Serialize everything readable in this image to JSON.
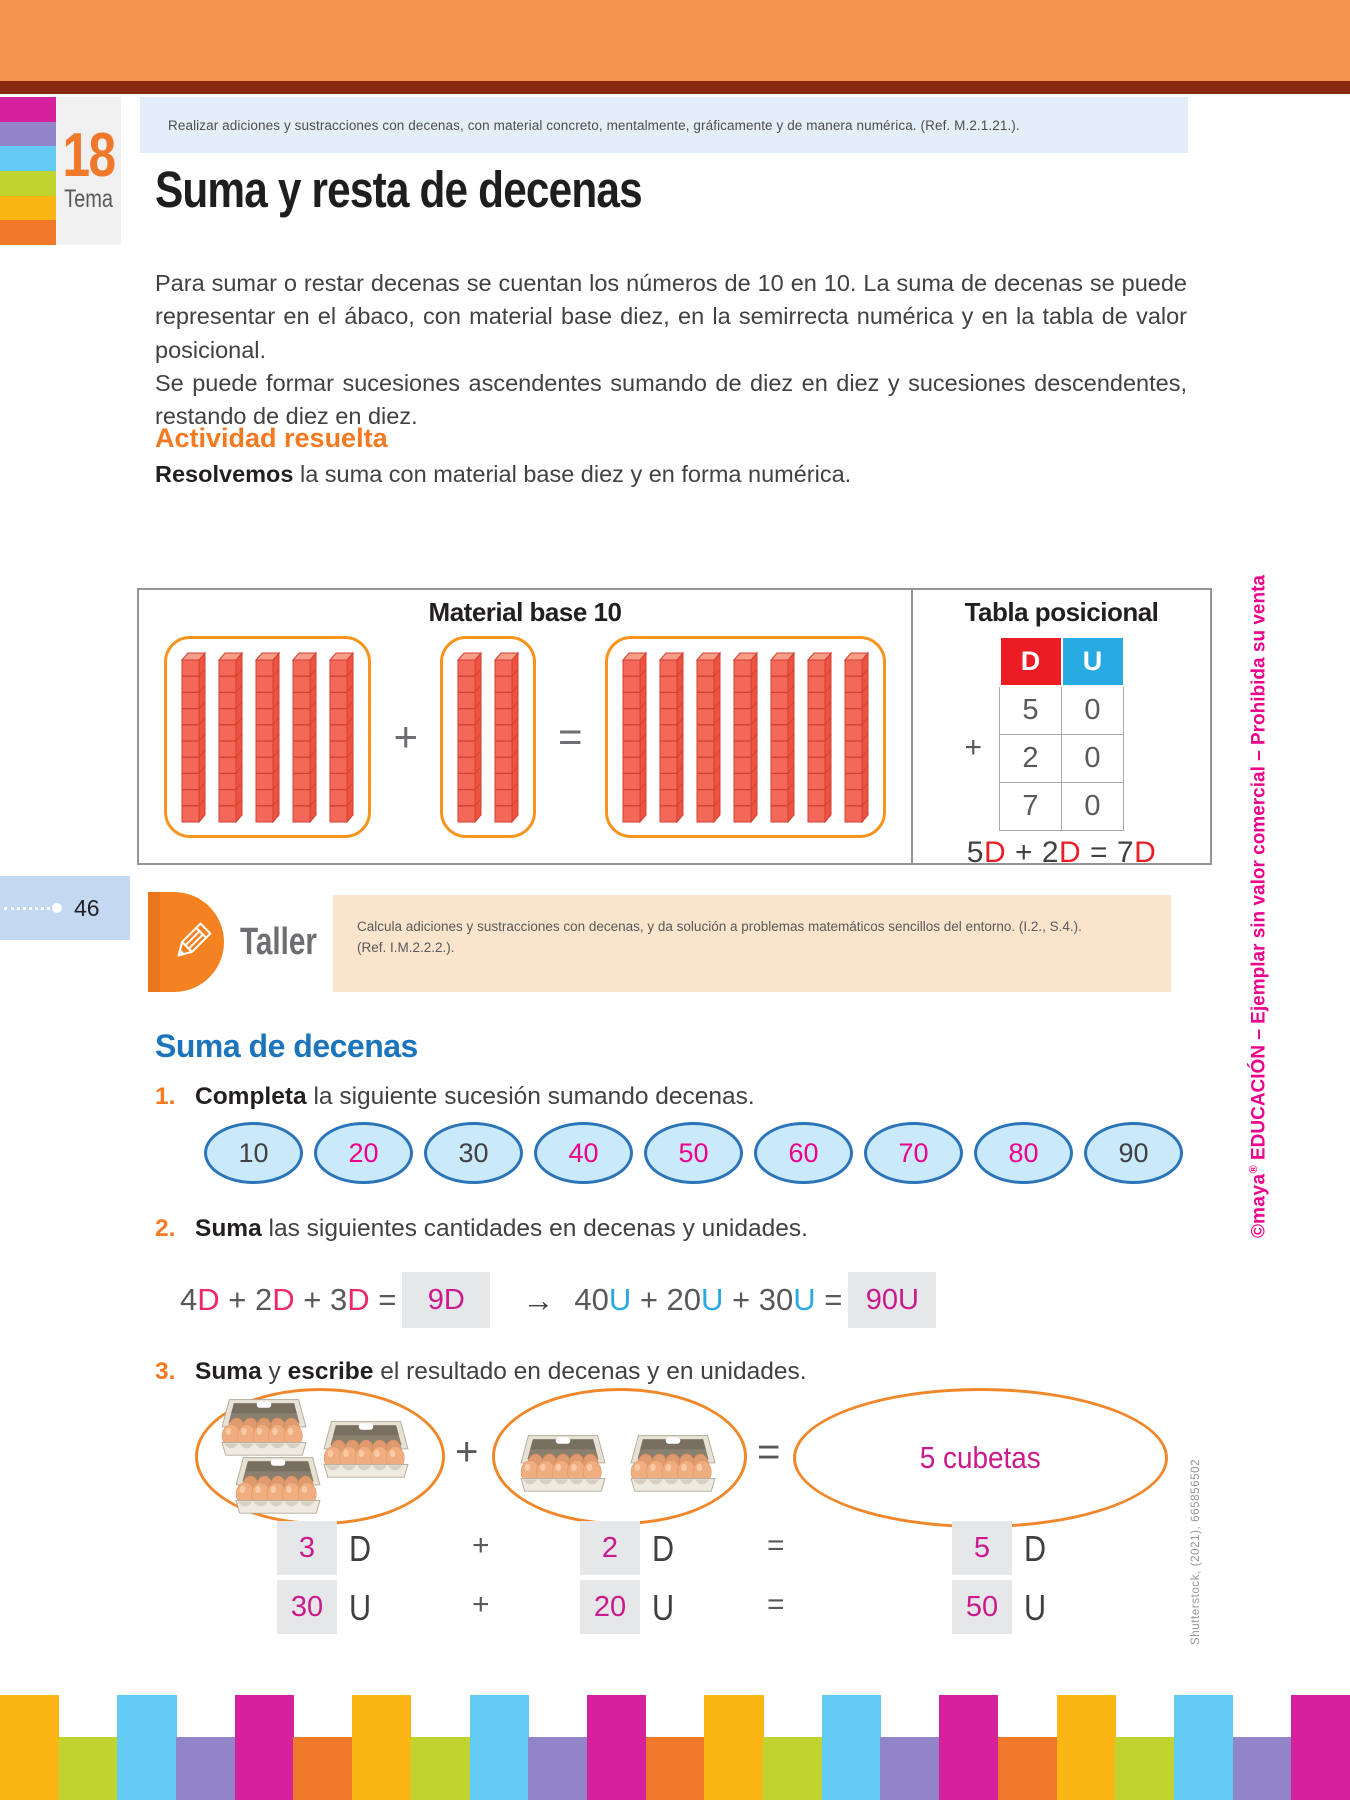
{
  "badge": {
    "number": "18",
    "label": "Tema",
    "stripes": [
      "#D6219C",
      "#9184C8",
      "#63CBF1",
      "#C0D32F",
      "#FBB614",
      "#F0782A"
    ]
  },
  "header": {
    "reference": "Realizar adiciones y sustracciones con decenas, con material concreto, mentalmente, gráficamente y de manera numérica. (Ref. M.2.1.21.)."
  },
  "page": {
    "number": "46",
    "title": "Suma y resta de decenas",
    "para1": "Para sumar o restar decenas se cuentan los números de 10 en 10. La suma de decenas se puede representar en el ábaco, con material base diez, en la semirrecta numérica y en la tabla de valor posicional.",
    "para2": "Se puede formar sucesiones ascendentes sumando de diez en diez y sucesiones descendentes, restando de diez en diez.",
    "activity_heading": "Actividad resuelta",
    "lead_bold": "Resolvemos",
    "lead_rest": " la suma con material base diez y en forma numérica."
  },
  "material_box": {
    "left_title": "Material base 10",
    "right_title": "Tabla posicional",
    "rod_groups": [
      5,
      2,
      7
    ],
    "plus": "+",
    "equals": "=",
    "table": {
      "headers": [
        {
          "label": "D",
          "color": "#EC1C24"
        },
        {
          "label": "U",
          "color": "#27AAE1"
        }
      ],
      "rows": [
        [
          "5",
          "0"
        ],
        [
          "2",
          "0"
        ],
        [
          "7",
          "0"
        ]
      ],
      "plus": "+"
    },
    "equation": [
      {
        "t": "5",
        "c": "#414042"
      },
      {
        "t": "D",
        "c": "#EC1C24"
      },
      {
        "t": " + ",
        "c": "#414042"
      },
      {
        "t": "2",
        "c": "#414042"
      },
      {
        "t": "D",
        "c": "#EC1C24"
      },
      {
        "t": " = ",
        "c": "#414042"
      },
      {
        "t": "7",
        "c": "#414042"
      },
      {
        "t": "D",
        "c": "#EC1C24"
      }
    ]
  },
  "taller": {
    "label": "Taller",
    "line1": "Calcula adiciones y sustracciones con decenas, y da solución a problemas matemáticos sencillos del entorno. (I.2., S.4.).",
    "line2": "(Ref. I.M.2.2.2.)."
  },
  "suma_section": {
    "heading": "Suma de decenas"
  },
  "ex1": {
    "num": "1.",
    "parts": [
      {
        "t": "Completa",
        "c": "#231F20",
        "b": true
      },
      {
        "t": " la siguiente sucesión sumando decenas.",
        "c": "#414042"
      }
    ],
    "sequence": [
      {
        "value": "10",
        "answer": false
      },
      {
        "value": "20",
        "answer": true
      },
      {
        "value": "30",
        "answer": false
      },
      {
        "value": "40",
        "answer": true
      },
      {
        "value": "50",
        "answer": true
      },
      {
        "value": "60",
        "answer": true
      },
      {
        "value": "70",
        "answer": true
      },
      {
        "value": "80",
        "answer": true
      },
      {
        "value": "90",
        "answer": false
      }
    ]
  },
  "ex2": {
    "num": "2.",
    "parts": [
      {
        "t": "Suma",
        "c": "#231F20",
        "b": true
      },
      {
        "t": " las siguientes cantidades en decenas y unidades.",
        "c": "#414042"
      }
    ],
    "lhs": [
      {
        "t": "4",
        "c": "#58595B"
      },
      {
        "t": "D",
        "c": "#ED2A66"
      },
      {
        "t": " +  ",
        "c": "#58595B"
      },
      {
        "t": "2",
        "c": "#58595B"
      },
      {
        "t": "D",
        "c": "#ED2A66"
      },
      {
        "t": " +  ",
        "c": "#58595B"
      },
      {
        "t": "3",
        "c": "#58595B"
      },
      {
        "t": "D",
        "c": "#ED2A66"
      },
      {
        "t": " = ",
        "c": "#58595B"
      }
    ],
    "answer1": "9D",
    "arrow": "→",
    "rhs": [
      {
        "t": "40",
        "c": "#58595B"
      },
      {
        "t": "U",
        "c": "#29ABE2"
      },
      {
        "t": " + ",
        "c": "#58595B"
      },
      {
        "t": "20",
        "c": "#58595B"
      },
      {
        "t": "U",
        "c": "#29ABE2"
      },
      {
        "t": " + ",
        "c": "#58595B"
      },
      {
        "t": "30",
        "c": "#58595B"
      },
      {
        "t": "U",
        "c": "#29ABE2"
      },
      {
        "t": " = ",
        "c": "#58595B"
      }
    ],
    "answer2": "90U"
  },
  "ex3": {
    "num": "3.",
    "parts": [
      {
        "t": "Suma",
        "c": "#231F20",
        "b": true
      },
      {
        "t": " y ",
        "c": "#414042"
      },
      {
        "t": "escribe",
        "c": "#231F20",
        "b": true
      },
      {
        "t": " el resultado en decenas y en unidades.",
        "c": "#414042"
      }
    ],
    "egg_groups": [
      3,
      2
    ],
    "plus": "+",
    "equals": "=",
    "result_label": "5 cubetas",
    "row_d": {
      "a": "3",
      "a_unit": "D",
      "plus": "+",
      "b": "2",
      "b_unit": "D",
      "equals": "=",
      "c": "5",
      "c_unit": "D"
    },
    "row_u": {
      "a": "30",
      "a_unit": "U",
      "plus": "+",
      "b": "20",
      "b_unit": "U",
      "equals": "=",
      "c": "50",
      "c_unit": "U"
    }
  },
  "sidebar": {
    "copyright": "©",
    "logo": "maya",
    "reg": "®",
    "publisher_rest": " EDUCACIÓN – Ejemplar sin valor comercial – Prohibida su venta",
    "credit": "Shutterstock, (2021), 665856502"
  },
  "footer": {
    "palette": [
      "#FBB614",
      "#C0D32F",
      "#63CBF1",
      "#9184C8",
      "#D6219C",
      "#F0782A"
    ],
    "bar_count": 23
  }
}
